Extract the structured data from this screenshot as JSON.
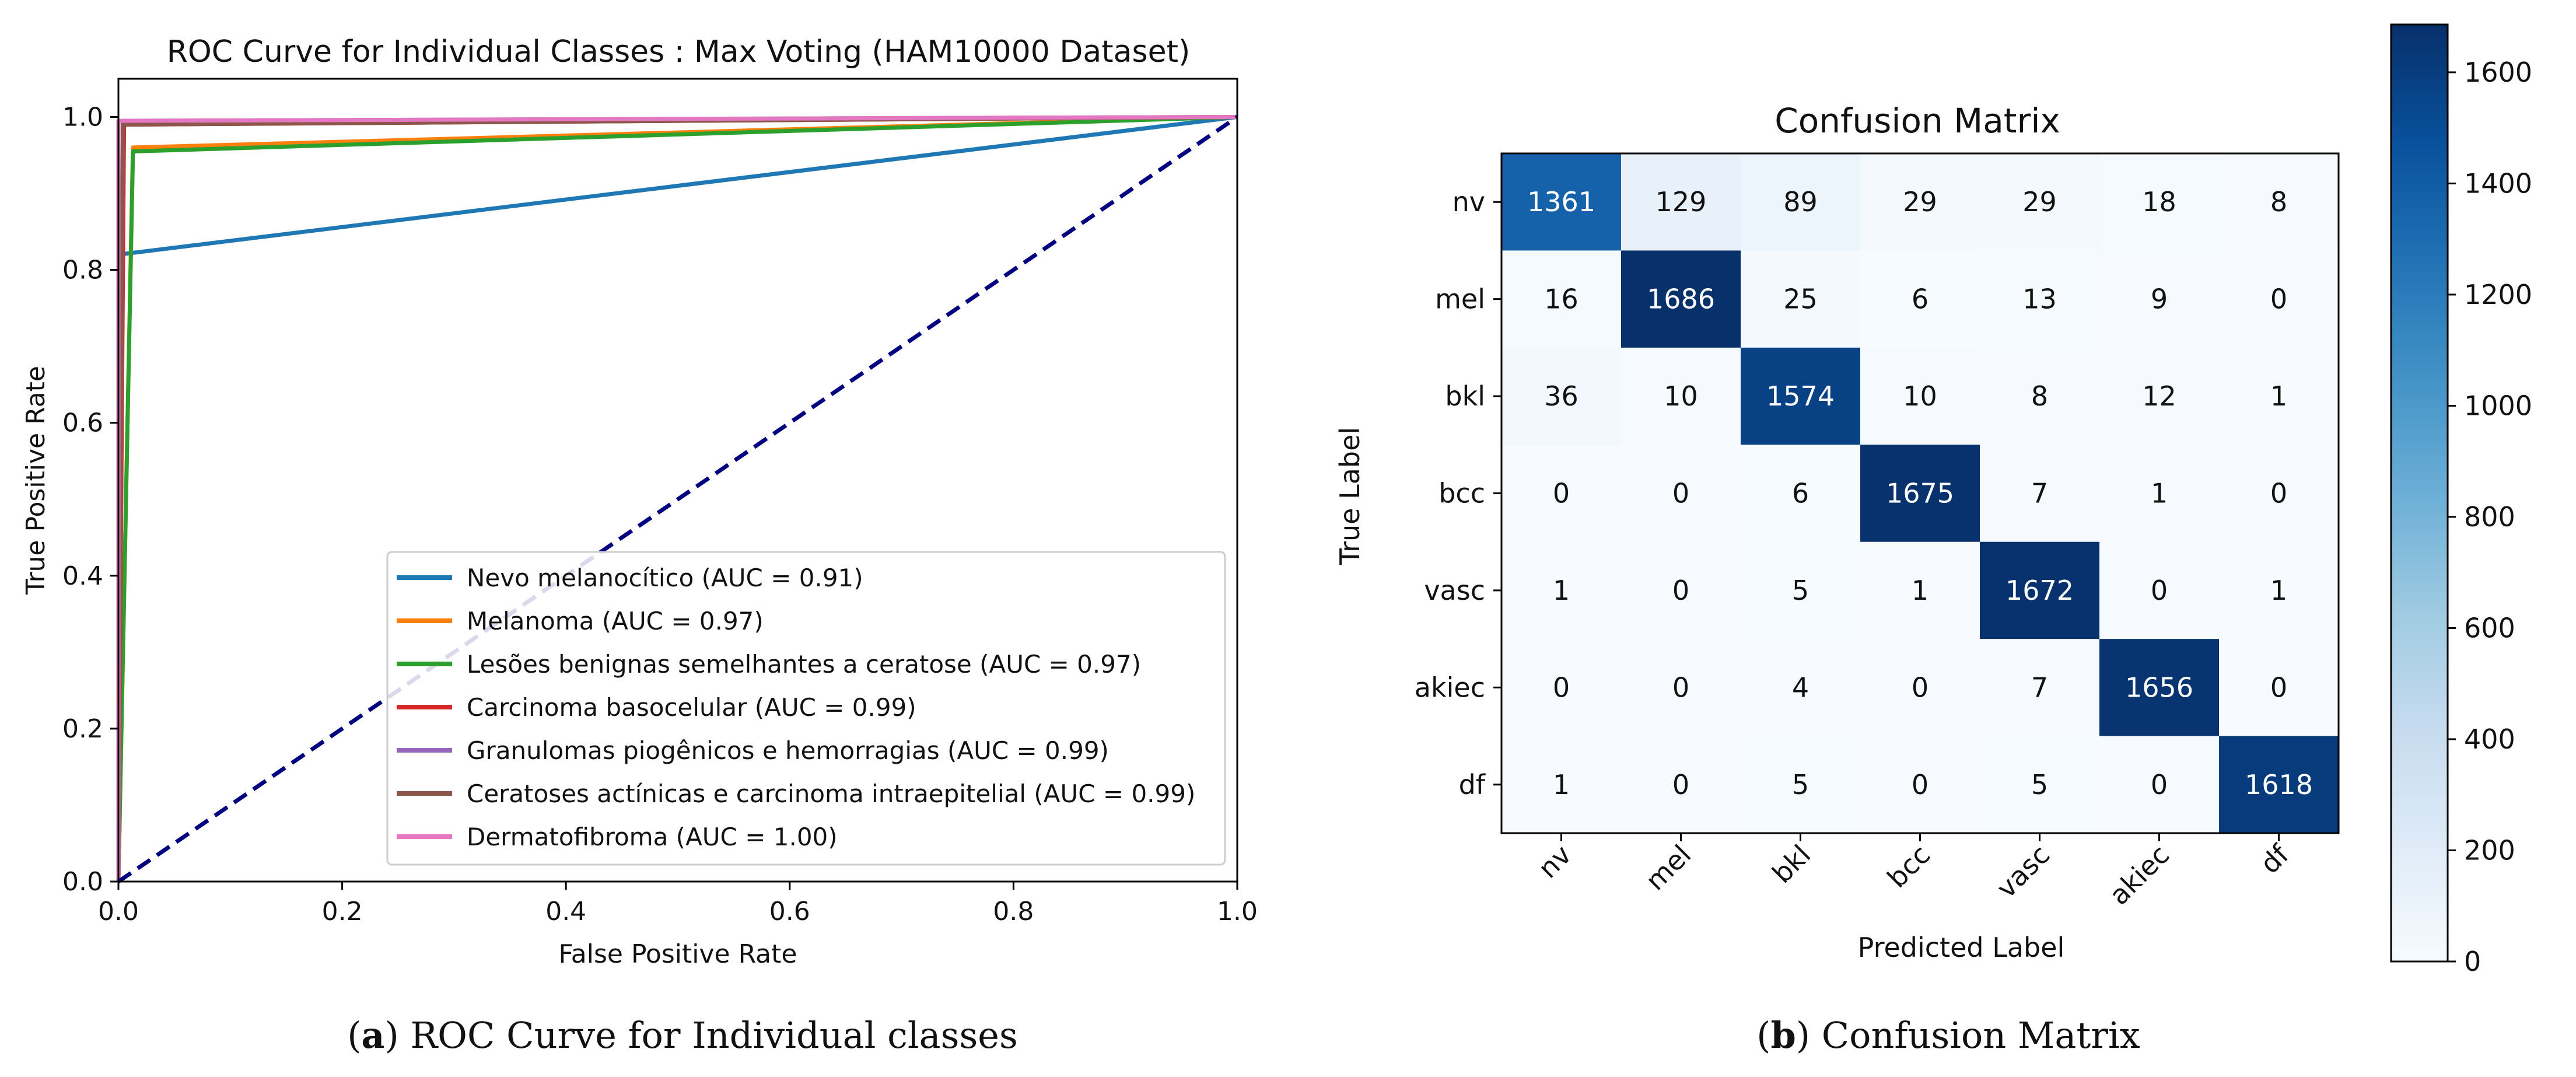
{
  "chart_data": [
    {
      "type": "line",
      "title": "ROC Curve for Individual Classes : Max Voting (HAM10000 Dataset)",
      "xlabel": "False Positive Rate",
      "ylabel": "True Positive Rate",
      "xlim": [
        0.0,
        1.0
      ],
      "ylim": [
        0.0,
        1.05
      ],
      "xticks": [
        0.0,
        0.2,
        0.4,
        0.6,
        0.8,
        1.0
      ],
      "yticks": [
        0.0,
        0.2,
        0.4,
        0.6,
        0.8,
        1.0
      ],
      "xtick_labels": [
        "0.0",
        "0.2",
        "0.4",
        "0.6",
        "0.8",
        "1.0"
      ],
      "ytick_labels": [
        "0.0",
        "0.2",
        "0.4",
        "0.6",
        "0.8",
        "1.0"
      ],
      "legend_position": "lower-right",
      "series": [
        {
          "name": "Nevo melanocítico (AUC = 0.91)",
          "color": "#1f77b4",
          "x": [
            0,
            0.0,
            1.0
          ],
          "y": [
            0,
            0.82,
            1.0
          ]
        },
        {
          "name": "Melanoma (AUC = 0.97)",
          "color": "#ff7f0e",
          "x": [
            0,
            0.013,
            1.0
          ],
          "y": [
            0,
            0.96,
            1.0
          ]
        },
        {
          "name": "Lesões benignas semelhantes a ceratose (AUC = 0.97)",
          "color": "#2ca02c",
          "x": [
            0,
            0.013,
            1.0
          ],
          "y": [
            0,
            0.955,
            1.0
          ]
        },
        {
          "name": "Carcinoma basocelular (AUC = 0.99)",
          "color": "#d62728",
          "x": [
            0,
            0.005,
            1.0
          ],
          "y": [
            0,
            0.99,
            1.0
          ]
        },
        {
          "name": "Granulomas piogênicos e hemorragias (AUC = 0.99)",
          "color": "#9467bd",
          "x": [
            0,
            0.004,
            1.0
          ],
          "y": [
            0,
            0.995,
            1.0
          ]
        },
        {
          "name": "Ceratoses actínicas e carcinoma intraepitelial (AUC = 0.99)",
          "color": "#8c564b",
          "x": [
            0,
            0.004,
            1.0
          ],
          "y": [
            0,
            0.99,
            1.0
          ]
        },
        {
          "name": "Dermatofibroma (AUC = 1.00)",
          "color": "#e377c2",
          "x": [
            0,
            0.0,
            1.0
          ],
          "y": [
            0,
            0.995,
            1.0
          ]
        }
      ],
      "diagonal": {
        "color": "#000080",
        "style": "dashed",
        "x": [
          0,
          1
        ],
        "y": [
          0,
          1
        ]
      }
    },
    {
      "type": "heatmap",
      "title": "Confusion Matrix",
      "xlabel": "Predicted Label",
      "ylabel": "True Label",
      "labels": [
        "nv",
        "mel",
        "bkl",
        "bcc",
        "vasc",
        "akiec",
        "df"
      ],
      "matrix": [
        [
          1361,
          129,
          89,
          29,
          29,
          18,
          8
        ],
        [
          16,
          1686,
          25,
          6,
          13,
          9,
          0
        ],
        [
          36,
          10,
          1574,
          10,
          8,
          12,
          1
        ],
        [
          0,
          0,
          6,
          1675,
          7,
          1,
          0
        ],
        [
          1,
          0,
          5,
          1,
          1672,
          0,
          1
        ],
        [
          0,
          0,
          4,
          0,
          7,
          1656,
          0
        ],
        [
          1,
          0,
          5,
          0,
          5,
          0,
          1618
        ]
      ],
      "colormap": "Blues",
      "vmin": 0,
      "vmax": 1686,
      "colorbar_ticks": [
        0,
        200,
        400,
        600,
        800,
        1000,
        1200,
        1400,
        1600
      ],
      "colorbar_tick_labels": [
        "0",
        "200",
        "400",
        "600",
        "800",
        "1000",
        "1200",
        "1400",
        "1600"
      ]
    }
  ],
  "captions": {
    "a_label": "a",
    "a_text": " ROC Curve for Individual classes",
    "b_label": "b",
    "b_text": " Confusion Matrix"
  }
}
